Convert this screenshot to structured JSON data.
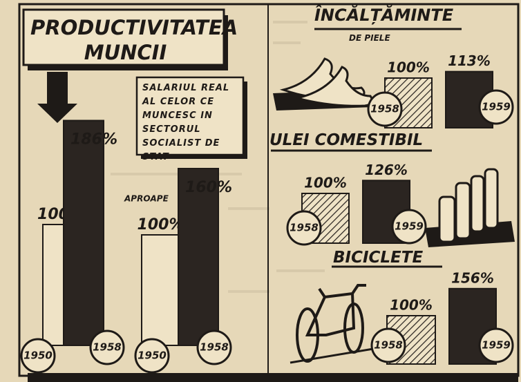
{
  "chart_data": [
    {
      "type": "bar",
      "title": "PRODUCTIVITATEA MUNCII",
      "categories": [
        "1950",
        "1958"
      ],
      "values": [
        100,
        186
      ],
      "value_labels": [
        "100%",
        "186%"
      ],
      "colors": [
        "#efe3c6",
        "#2b2521"
      ]
    },
    {
      "type": "bar",
      "title": "SALARIUL REAL AL CELOR CE MUNCESC IN SECTORUL SOCIALIST DE STAT",
      "annotation": "APROAPE",
      "categories": [
        "1950",
        "1958"
      ],
      "values": [
        100,
        160
      ],
      "value_labels": [
        "100%",
        "160%"
      ],
      "colors": [
        "#efe3c6",
        "#2b2521"
      ]
    },
    {
      "type": "bar",
      "title": "ÎNCĂLȚĂMINTE",
      "subtitle": "DE PIELE",
      "categories": [
        "1958",
        "1959"
      ],
      "values": [
        100,
        113
      ],
      "value_labels": [
        "100%",
        "113%"
      ],
      "colors": [
        "#efe3c6",
        "#2b2521"
      ]
    },
    {
      "type": "bar",
      "title": "ULEI COMESTIBIL",
      "categories": [
        "1958",
        "1959"
      ],
      "values": [
        100,
        126
      ],
      "value_labels": [
        "100%",
        "126%"
      ],
      "colors": [
        "#efe3c6",
        "#2b2521"
      ]
    },
    {
      "type": "bar",
      "title": "BICICLETE",
      "categories": [
        "1958",
        "1959"
      ],
      "values": [
        100,
        156
      ],
      "value_labels": [
        "100%",
        "156%"
      ],
      "colors": [
        "#efe3c6",
        "#2b2521"
      ]
    }
  ]
}
